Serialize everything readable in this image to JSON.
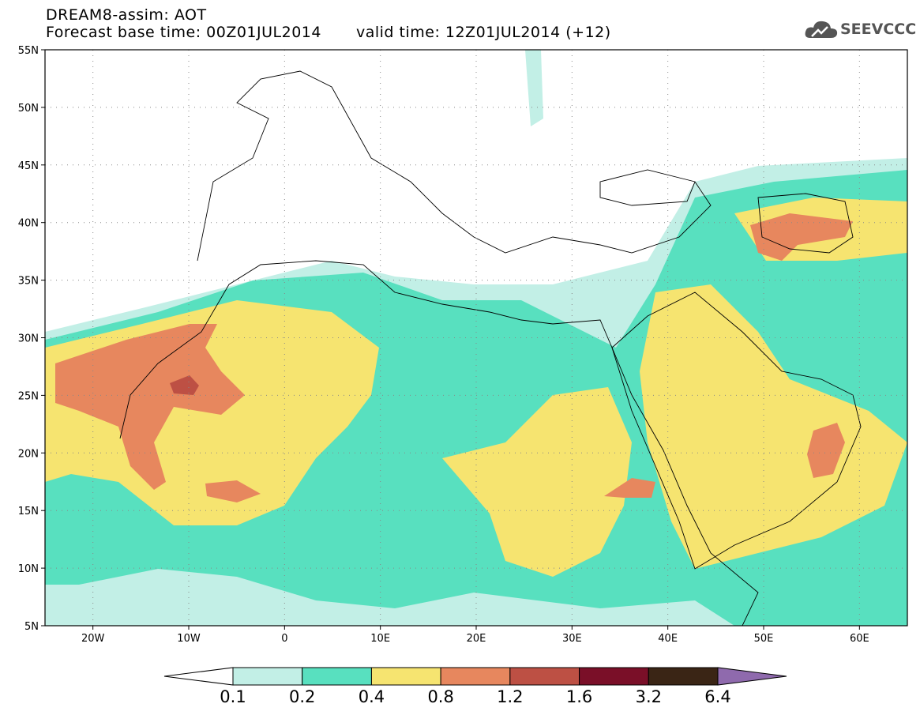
{
  "header": {
    "line1": "DREAM8-assim: AOT",
    "base_time": "Forecast base time: 00Z01JUL2014",
    "valid_time": "valid time: 12Z01JUL2014 (+12)"
  },
  "logo": {
    "text": "SEEVCCC",
    "icon": "cloud-icon"
  },
  "map": {
    "lon_range": [
      -25,
      65
    ],
    "lat_range": [
      5,
      55
    ],
    "lat_ticks": [
      {
        "value": 55,
        "label": "55N"
      },
      {
        "value": 50,
        "label": "50N"
      },
      {
        "value": 45,
        "label": "45N"
      },
      {
        "value": 40,
        "label": "40N"
      },
      {
        "value": 35,
        "label": "35N"
      },
      {
        "value": 30,
        "label": "30N"
      },
      {
        "value": 25,
        "label": "25N"
      },
      {
        "value": 20,
        "label": "20N"
      },
      {
        "value": 15,
        "label": "15N"
      },
      {
        "value": 10,
        "label": "10N"
      },
      {
        "value": 5,
        "label": "5N"
      }
    ],
    "lon_ticks": [
      {
        "value": -20,
        "label": "20W"
      },
      {
        "value": -10,
        "label": "10W"
      },
      {
        "value": 0,
        "label": "0"
      },
      {
        "value": 10,
        "label": "10E"
      },
      {
        "value": 20,
        "label": "20E"
      },
      {
        "value": 30,
        "label": "30E"
      },
      {
        "value": 40,
        "label": "40E"
      },
      {
        "value": 50,
        "label": "50E"
      },
      {
        "value": 60,
        "label": "60E"
      }
    ],
    "grid": "dotted"
  },
  "colorbar": {
    "labels": [
      "0.1",
      "0.2",
      "0.4",
      "0.8",
      "1.2",
      "1.6",
      "3.2",
      "6.4"
    ],
    "colors": [
      "#ffffff",
      "#c2efe6",
      "#58e0bf",
      "#f6e470",
      "#e7875e",
      "#bd5044",
      "#7a0f28",
      "#3a2515",
      "#8f6aad"
    ]
  }
}
